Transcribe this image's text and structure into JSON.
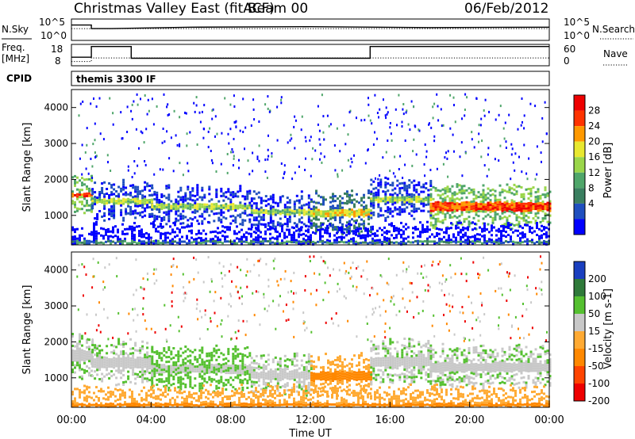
{
  "header": {
    "title": "Christmas Valley East (fitACF)",
    "beam": "Beam 00",
    "date": "06/Feb/2012"
  },
  "chart_data": [
    {
      "type": "line",
      "panel": "noise",
      "left_label": "N.Sky",
      "right_label": "N.Search",
      "left_ticks": [
        "10^5",
        "10^0"
      ],
      "right_ticks": [
        "10^5",
        "10^0"
      ],
      "series": [
        {
          "name": "N.Sky",
          "style": "solid",
          "x": [
            0,
            1.0,
            1.0,
            2.0,
            6.0,
            12.0,
            18.0,
            24.0
          ],
          "y_frac": [
            0.72,
            0.72,
            0.55,
            0.55,
            0.62,
            0.64,
            0.6,
            0.62
          ]
        },
        {
          "name": "N.Search",
          "style": "dotted",
          "x": [
            0,
            24
          ],
          "y_frac": [
            0.55,
            0.55
          ]
        }
      ]
    },
    {
      "type": "line",
      "panel": "frequency",
      "left_label": "Freq.",
      "left_unit": "[MHz]",
      "left_ticks": [
        "18",
        "8"
      ],
      "right_label": "Nave",
      "right_ticks": [
        "60",
        "0"
      ],
      "series": [
        {
          "name": "Freq.",
          "style": "solid",
          "x": [
            0,
            1.0,
            1.0,
            3.0,
            3.0,
            15.0,
            15.0,
            24.0
          ],
          "y": [
            12.0,
            12.0,
            17.0,
            17.0,
            11.5,
            11.5,
            17.0,
            17.0
          ]
        },
        {
          "name": "Nave",
          "style": "dotted",
          "x": [
            0,
            1.0,
            1.0,
            24.0
          ],
          "y": [
            12,
            12,
            22,
            22
          ]
        }
      ]
    },
    {
      "type": "table",
      "panel": "cpid",
      "label": "CPID",
      "value": "themis 3300 IF"
    },
    {
      "type": "heatmap",
      "panel": "power",
      "ylabel": "Slant Range [km]",
      "ylim": [
        180,
        4500
      ],
      "y_ticks": [
        1000,
        2000,
        3000,
        4000
      ],
      "colorbar_label": "Power [dB]",
      "colorbar_ticks": [
        "28",
        "24",
        "20",
        "16",
        "12",
        "8",
        "4"
      ],
      "colors": [
        "#0000ff",
        "#1f4fbf",
        "#3a7f60",
        "#4fa66a",
        "#9ad64a",
        "#e8e830",
        "#ff9900",
        "#ff3300",
        "#ee0000"
      ],
      "bands": [
        {
          "x": [
            0.0,
            1.0
          ],
          "r": [
            1550,
            1650
          ],
          "p": 26
        },
        {
          "x": [
            1.0,
            4.0
          ],
          "r": [
            1350,
            1500
          ],
          "p": 14
        },
        {
          "x": [
            4.0,
            9.0
          ],
          "r": [
            1200,
            1350
          ],
          "p": 16
        },
        {
          "x": [
            9.0,
            12.0
          ],
          "r": [
            1050,
            1200
          ],
          "p": 14
        },
        {
          "x": [
            12.0,
            15.0
          ],
          "r": [
            1000,
            1200
          ],
          "p": 18
        },
        {
          "x": [
            15.0,
            18.0
          ],
          "r": [
            1400,
            1550
          ],
          "p": 16
        },
        {
          "x": [
            18.0,
            24.0
          ],
          "r": [
            1150,
            1400
          ],
          "p": 27
        },
        {
          "x": [
            0.0,
            24.0
          ],
          "r": [
            250,
            320
          ],
          "p": 6
        }
      ]
    },
    {
      "type": "heatmap",
      "panel": "velocity",
      "xlabel": "Time UT",
      "ylabel": "Slant Range [km]",
      "xlim": [
        0,
        24
      ],
      "x_ticks": [
        "00:00",
        "04:00",
        "08:00",
        "12:00",
        "16:00",
        "20:00",
        "00:00"
      ],
      "ylim": [
        180,
        4500
      ],
      "y_ticks": [
        1000,
        2000,
        3000,
        4000
      ],
      "colorbar_label": "Velocity [m s-1]",
      "colorbar_ticks": [
        "200",
        "100",
        "50",
        "15",
        "-15",
        "-50",
        "-100",
        "-200"
      ],
      "colors": [
        "#1a3fbf",
        "#2f7a3a",
        "#55c030",
        "#c8c8c8",
        "#ffaa33",
        "#ff8800",
        "#ff4400",
        "#ee0000"
      ],
      "bands": [
        {
          "x": [
            0.0,
            1.0
          ],
          "r": [
            1500,
            1800
          ],
          "v": 0
        },
        {
          "x": [
            1.0,
            4.0
          ],
          "r": [
            1300,
            1600
          ],
          "v": 0
        },
        {
          "x": [
            4.0,
            9.0
          ],
          "r": [
            1150,
            1400
          ],
          "v": 20
        },
        {
          "x": [
            9.0,
            12.0
          ],
          "r": [
            1000,
            1200
          ],
          "v": 0
        },
        {
          "x": [
            12.0,
            15.0
          ],
          "r": [
            950,
            1200
          ],
          "v": -60
        },
        {
          "x": [
            15.0,
            18.0
          ],
          "r": [
            1350,
            1600
          ],
          "v": 0
        },
        {
          "x": [
            18.0,
            24.0
          ],
          "r": [
            1200,
            1450
          ],
          "v": 0
        },
        {
          "x": [
            0.0,
            24.0
          ],
          "r": [
            230,
            320
          ],
          "v": -40
        }
      ]
    }
  ]
}
